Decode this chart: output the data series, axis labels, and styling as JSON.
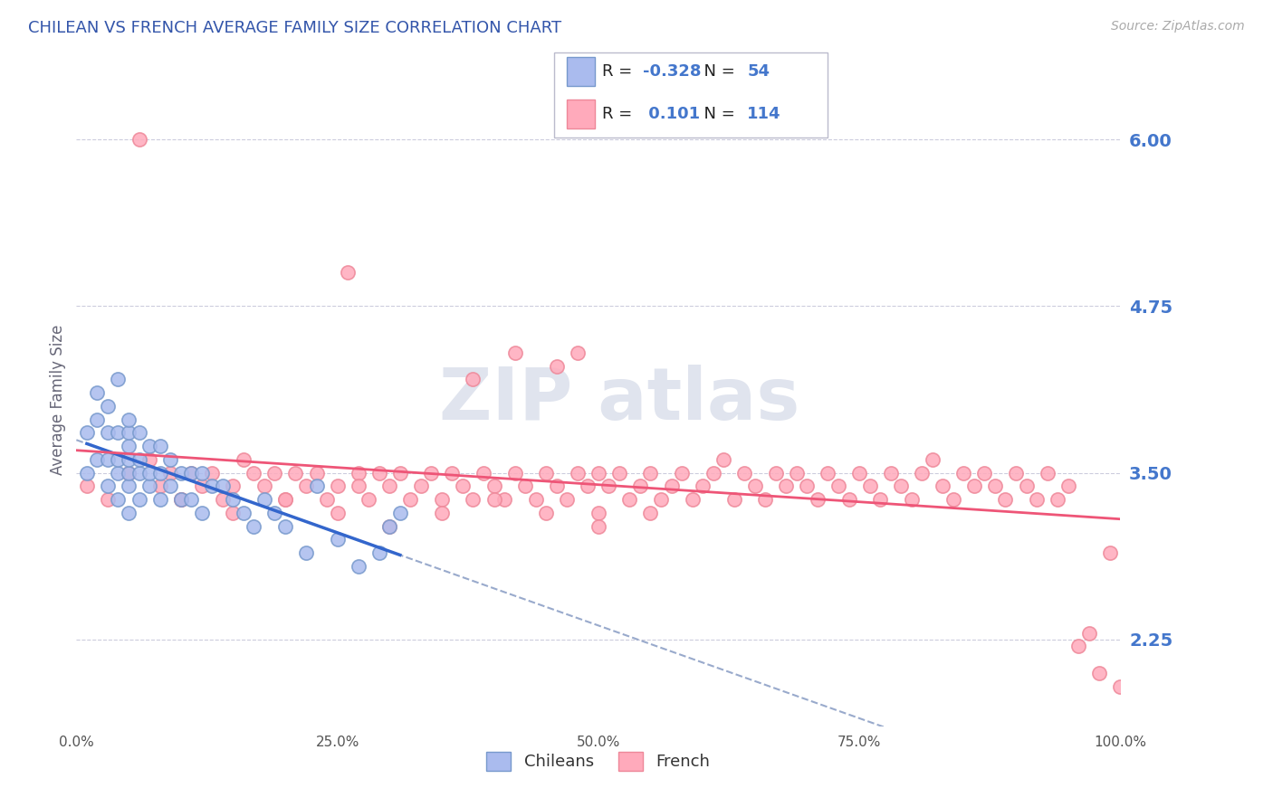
{
  "title": "CHILEAN VS FRENCH AVERAGE FAMILY SIZE CORRELATION CHART",
  "source_text": "Source: ZipAtlas.com",
  "ylabel": "Average Family Size",
  "yticks": [
    2.25,
    3.5,
    4.75,
    6.0
  ],
  "xlim": [
    0.0,
    1.0
  ],
  "ylim": [
    1.6,
    6.5
  ],
  "title_color": "#3355aa",
  "ytick_color": "#4477cc",
  "background_color": "#ffffff",
  "grid_color": "#ccccdd",
  "chilean_color": "#aabbee",
  "chilean_edge_color": "#7799cc",
  "french_color": "#ffaabb",
  "french_edge_color": "#ee8899",
  "chilean_line_color": "#3366cc",
  "french_line_color": "#ee5577",
  "dashed_line_color": "#99aacc",
  "legend_R_chilean": "-0.328",
  "legend_N_chilean": "54",
  "legend_R_french": "0.101",
  "legend_N_french": "114",
  "chilean_scatter_x": [
    0.01,
    0.01,
    0.02,
    0.02,
    0.02,
    0.03,
    0.03,
    0.03,
    0.03,
    0.04,
    0.04,
    0.04,
    0.04,
    0.04,
    0.05,
    0.05,
    0.05,
    0.05,
    0.05,
    0.05,
    0.05,
    0.06,
    0.06,
    0.06,
    0.06,
    0.07,
    0.07,
    0.07,
    0.08,
    0.08,
    0.08,
    0.09,
    0.09,
    0.1,
    0.1,
    0.11,
    0.11,
    0.12,
    0.12,
    0.13,
    0.14,
    0.15,
    0.16,
    0.17,
    0.18,
    0.19,
    0.2,
    0.22,
    0.23,
    0.25,
    0.27,
    0.29,
    0.3,
    0.31
  ],
  "chilean_scatter_y": [
    3.5,
    3.8,
    3.6,
    3.9,
    4.1,
    3.4,
    3.6,
    3.8,
    4.0,
    3.3,
    3.5,
    3.6,
    3.8,
    4.2,
    3.2,
    3.4,
    3.5,
    3.6,
    3.7,
    3.8,
    3.9,
    3.3,
    3.5,
    3.6,
    3.8,
    3.4,
    3.5,
    3.7,
    3.3,
    3.5,
    3.7,
    3.4,
    3.6,
    3.3,
    3.5,
    3.3,
    3.5,
    3.2,
    3.5,
    3.4,
    3.4,
    3.3,
    3.2,
    3.1,
    3.3,
    3.2,
    3.1,
    2.9,
    3.4,
    3.0,
    2.8,
    2.9,
    3.1,
    3.2
  ],
  "french_scatter_x": [
    0.01,
    0.03,
    0.05,
    0.06,
    0.07,
    0.08,
    0.09,
    0.1,
    0.11,
    0.12,
    0.13,
    0.14,
    0.15,
    0.16,
    0.17,
    0.18,
    0.19,
    0.2,
    0.21,
    0.22,
    0.23,
    0.24,
    0.25,
    0.26,
    0.27,
    0.27,
    0.28,
    0.29,
    0.3,
    0.31,
    0.32,
    0.33,
    0.34,
    0.35,
    0.36,
    0.37,
    0.38,
    0.38,
    0.39,
    0.4,
    0.41,
    0.42,
    0.42,
    0.43,
    0.44,
    0.45,
    0.46,
    0.46,
    0.47,
    0.48,
    0.48,
    0.49,
    0.5,
    0.5,
    0.51,
    0.52,
    0.53,
    0.54,
    0.55,
    0.56,
    0.57,
    0.58,
    0.59,
    0.6,
    0.61,
    0.62,
    0.63,
    0.64,
    0.65,
    0.66,
    0.67,
    0.68,
    0.69,
    0.7,
    0.71,
    0.72,
    0.73,
    0.74,
    0.75,
    0.76,
    0.77,
    0.78,
    0.79,
    0.8,
    0.81,
    0.82,
    0.83,
    0.84,
    0.85,
    0.86,
    0.87,
    0.88,
    0.89,
    0.9,
    0.91,
    0.92,
    0.93,
    0.94,
    0.95,
    0.96,
    0.97,
    0.98,
    0.99,
    1.0,
    0.1,
    0.15,
    0.2,
    0.25,
    0.3,
    0.35,
    0.4,
    0.45,
    0.5,
    0.55
  ],
  "french_scatter_y": [
    3.4,
    3.3,
    3.5,
    6.0,
    3.6,
    3.4,
    3.5,
    3.3,
    3.5,
    3.4,
    3.5,
    3.3,
    3.4,
    3.6,
    3.5,
    3.4,
    3.5,
    3.3,
    3.5,
    3.4,
    3.5,
    3.3,
    3.4,
    5.0,
    3.5,
    3.4,
    3.3,
    3.5,
    3.4,
    3.5,
    3.3,
    3.4,
    3.5,
    3.3,
    3.5,
    3.4,
    4.2,
    3.3,
    3.5,
    3.4,
    3.3,
    4.4,
    3.5,
    3.4,
    3.3,
    3.5,
    4.3,
    3.4,
    3.3,
    3.5,
    4.4,
    3.4,
    3.5,
    3.2,
    3.4,
    3.5,
    3.3,
    3.4,
    3.5,
    3.3,
    3.4,
    3.5,
    3.3,
    3.4,
    3.5,
    3.6,
    3.3,
    3.5,
    3.4,
    3.3,
    3.5,
    3.4,
    3.5,
    3.4,
    3.3,
    3.5,
    3.4,
    3.3,
    3.5,
    3.4,
    3.3,
    3.5,
    3.4,
    3.3,
    3.5,
    3.6,
    3.4,
    3.3,
    3.5,
    3.4,
    3.5,
    3.4,
    3.3,
    3.5,
    3.4,
    3.3,
    3.5,
    3.3,
    3.4,
    2.2,
    2.3,
    2.0,
    2.9,
    1.9,
    3.3,
    3.2,
    3.3,
    3.2,
    3.1,
    3.2,
    3.3,
    3.2,
    3.1,
    3.2
  ]
}
